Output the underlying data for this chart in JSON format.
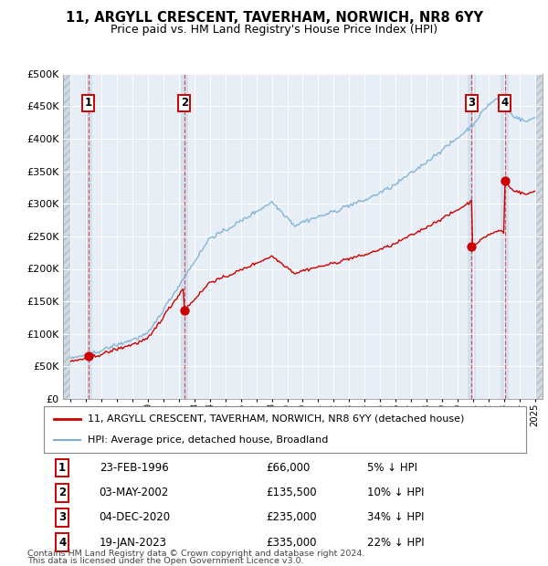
{
  "title1": "11, ARGYLL CRESCENT, TAVERHAM, NORWICH, NR8 6YY",
  "title2": "Price paid vs. HM Land Registry's House Price Index (HPI)",
  "ylim": [
    0,
    500000
  ],
  "yticks": [
    0,
    50000,
    100000,
    150000,
    200000,
    250000,
    300000,
    350000,
    400000,
    450000,
    500000
  ],
  "ytick_labels": [
    "£0",
    "£50K",
    "£100K",
    "£150K",
    "£200K",
    "£250K",
    "£300K",
    "£350K",
    "£400K",
    "£450K",
    "£500K"
  ],
  "xlim_start": 1994.5,
  "xlim_end": 2025.5,
  "sale_color": "#cc0000",
  "hpi_color": "#7bafd4",
  "sale_label": "11, ARGYLL CRESCENT, TAVERHAM, NORWICH, NR8 6YY (detached house)",
  "hpi_label": "HPI: Average price, detached house, Broadland",
  "transactions": [
    {
      "num": 1,
      "date_x": 1996.14,
      "price": 66000,
      "label": "23-FEB-1996",
      "price_str": "£66,000",
      "pct": "5% ↓ HPI"
    },
    {
      "num": 2,
      "date_x": 2002.34,
      "price": 135500,
      "label": "03-MAY-2002",
      "price_str": "£135,500",
      "pct": "10% ↓ HPI"
    },
    {
      "num": 3,
      "date_x": 2020.92,
      "price": 235000,
      "label": "04-DEC-2020",
      "price_str": "£235,000",
      "pct": "34% ↓ HPI"
    },
    {
      "num": 4,
      "date_x": 2023.05,
      "price": 335000,
      "label": "19-JAN-2023",
      "price_str": "£335,000",
      "pct": "22% ↓ HPI"
    }
  ],
  "footer1": "Contains HM Land Registry data © Crown copyright and database right 2024.",
  "footer2": "This data is licensed under the Open Government Licence v3.0.",
  "chart_bg": "#e8eef5",
  "hatch_bg": "#d0dae6"
}
